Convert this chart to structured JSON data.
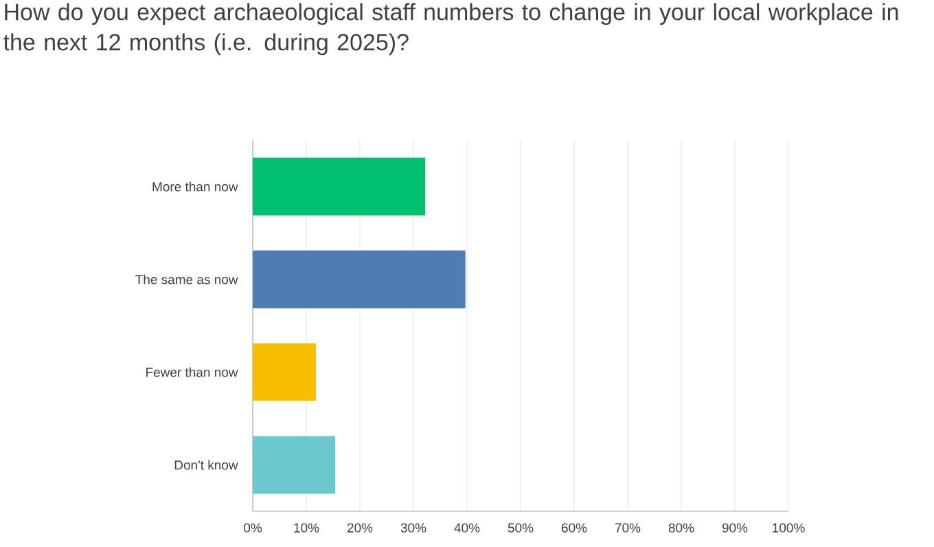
{
  "chart_data": {
    "type": "bar",
    "orientation": "horizontal",
    "title": "How do you expect archaeological staff numbers to change in your local workplace in the next 12 months (i.e. during 2025)?",
    "categories": [
      "More than now",
      "The same as now",
      "Fewer than now",
      "Don't know"
    ],
    "values": [
      32.2,
      39.7,
      11.8,
      15.4
    ],
    "colors": [
      "#00bf6f",
      "#507cb6",
      "#f9be00",
      "#6bc8cd"
    ],
    "xlim": [
      0,
      100
    ],
    "xticks": [
      {
        "value": 0,
        "label": "0%"
      },
      {
        "value": 10,
        "label": "10%"
      },
      {
        "value": 20,
        "label": "20%"
      },
      {
        "value": 30,
        "label": "30%"
      },
      {
        "value": 40,
        "label": "40%"
      },
      {
        "value": 50,
        "label": "50%"
      },
      {
        "value": 60,
        "label": "60%"
      },
      {
        "value": 70,
        "label": "70%"
      },
      {
        "value": 80,
        "label": "80%"
      },
      {
        "value": 90,
        "label": "90%"
      },
      {
        "value": 100,
        "label": "100%"
      }
    ],
    "grid": "x"
  }
}
